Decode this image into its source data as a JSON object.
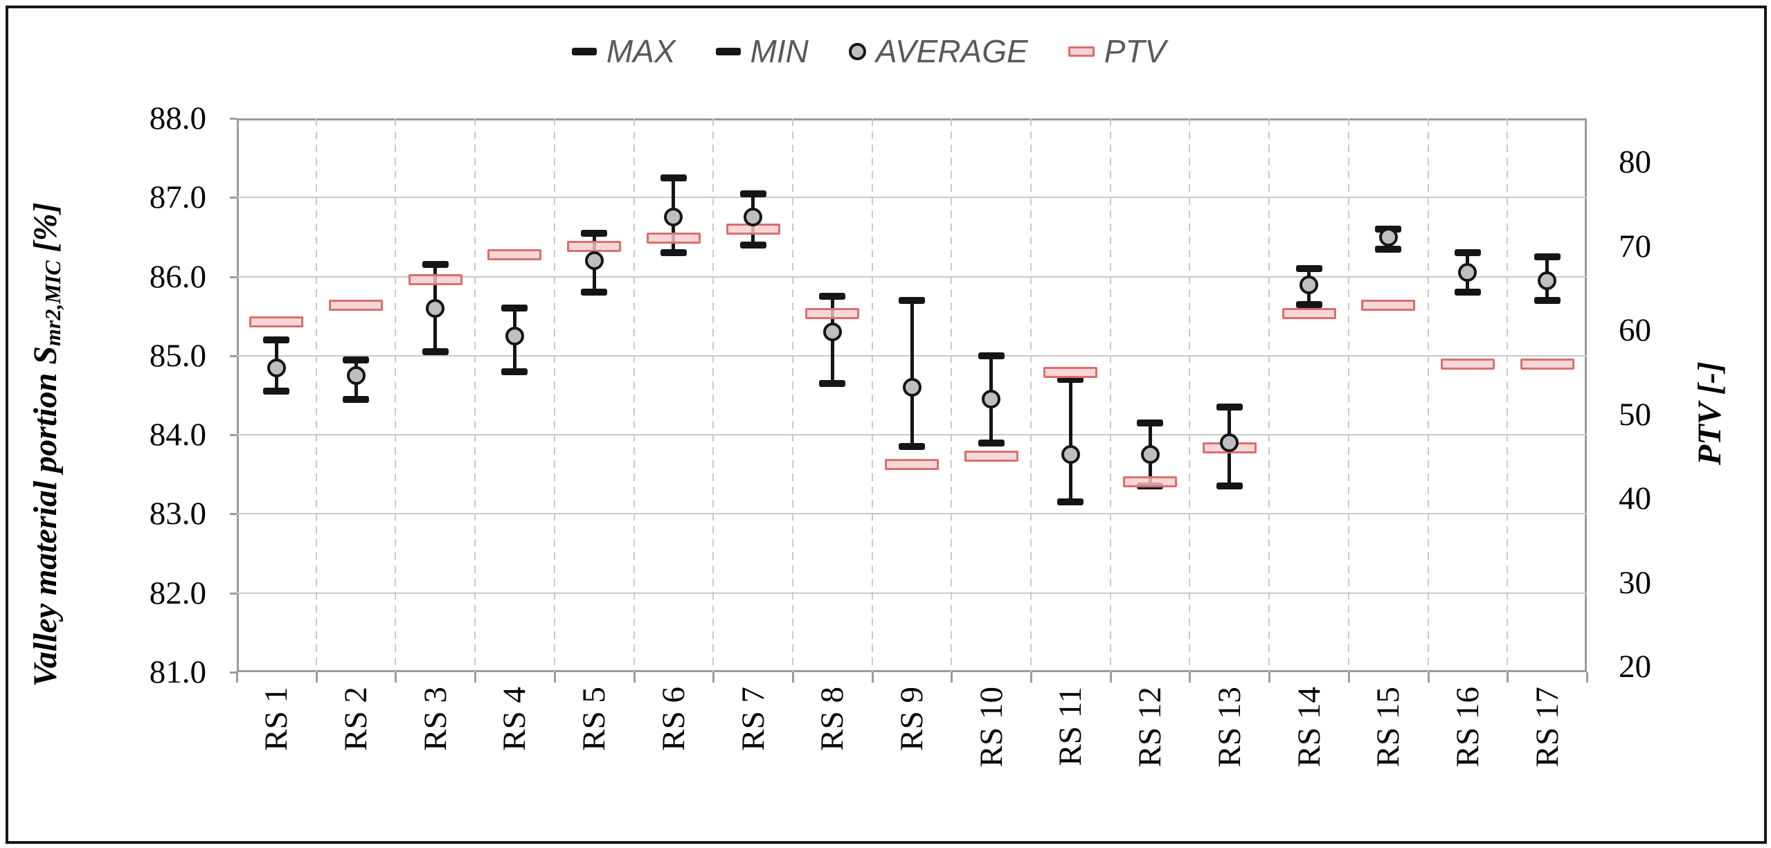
{
  "colors": {
    "black_marker": "#151515",
    "average_fill": "#bfbfbf",
    "average_stroke": "#151515",
    "ptv_fill": "#f7d2d2",
    "ptv_stroke": "#dc6e6e",
    "grid": "#c9c9c9",
    "axis_line": "#9b9b9b",
    "legend_text": "#595959",
    "frame": "#181818"
  },
  "chart_data": {
    "type": "scatter",
    "subtype": "min-max-average error bars with secondary-axis PTV bars",
    "title": "",
    "legend_position": "top-center",
    "grid": {
      "horizontal": "solid",
      "vertical": "dashed at category boundaries"
    },
    "categories": [
      "RS 1",
      "RS 2",
      "RS 3",
      "RS 4",
      "RS 5",
      "RS 6",
      "RS 7",
      "RS 8",
      "RS 9",
      "RS 10",
      "RS 11",
      "RS 12",
      "RS 13",
      "RS 14",
      "RS 15",
      "RS 16",
      "RS 17"
    ],
    "series": [
      {
        "name": "MAX",
        "axis": "left",
        "marker": "black-cap",
        "values": [
          85.2,
          84.95,
          86.15,
          85.6,
          86.55,
          87.25,
          87.05,
          85.75,
          85.7,
          85.0,
          84.7,
          84.15,
          84.35,
          86.1,
          86.6,
          86.3,
          86.25
        ]
      },
      {
        "name": "MIN",
        "axis": "left",
        "marker": "black-cap",
        "values": [
          84.55,
          84.45,
          85.05,
          84.8,
          85.8,
          86.3,
          86.4,
          84.65,
          83.85,
          83.9,
          83.15,
          83.35,
          83.35,
          85.65,
          86.35,
          85.8,
          85.7
        ]
      },
      {
        "name": "AVERAGE",
        "axis": "left",
        "marker": "gray-circle",
        "values": [
          84.85,
          84.75,
          85.6,
          85.25,
          86.2,
          86.75,
          86.75,
          85.3,
          84.6,
          84.45,
          83.75,
          83.75,
          83.9,
          85.9,
          86.5,
          86.05,
          85.95
        ]
      },
      {
        "name": "PTV",
        "axis": "right",
        "marker": "pink-bar",
        "values": [
          61,
          63,
          66,
          69,
          70,
          71,
          72,
          62,
          44,
          45,
          55,
          42,
          46,
          62,
          63,
          56,
          56
        ]
      }
    ],
    "left_axis": {
      "title_prefix": "Valley material portion S",
      "title_sub": "mr2,MIC",
      "title_suffix": " [%]",
      "min": 81.0,
      "max": 88.0,
      "ticks": [
        88.0,
        87.0,
        86.0,
        85.0,
        84.0,
        83.0,
        82.0,
        81.0
      ],
      "tick_decimals": 1
    },
    "right_axis": {
      "title": "PTV [-]",
      "min": 20,
      "max": 80,
      "ticks": [
        80,
        70,
        60,
        50,
        40,
        30,
        20
      ],
      "top_frac": 0.079,
      "bottom_frac": 0.99
    }
  }
}
